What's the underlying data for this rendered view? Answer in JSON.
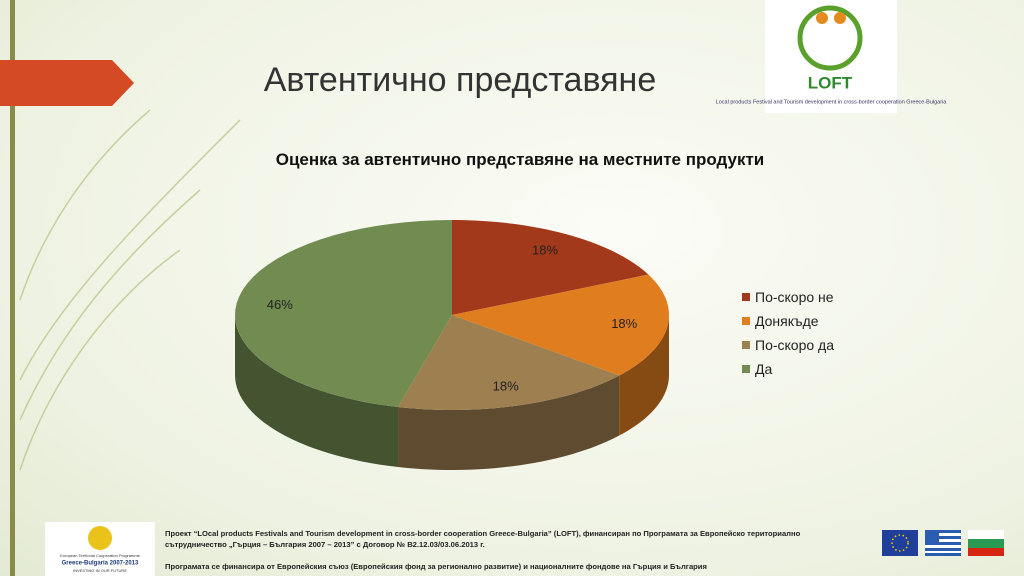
{
  "slide_title": "Автентично представяне",
  "logo": {
    "name": "LOFT",
    "caption": "Local products Festival and Tourism development in cross-border cooperation Greece-Bulgaria"
  },
  "programme_logo": {
    "line1": "European Territorial Cooperation Programme",
    "line2": "Greece-Bulgaria 2007-2013",
    "line3": "INVESTING IN OUR FUTURE"
  },
  "footer": {
    "line1": "Проект “LOcal products Festivals and Tourism development in cross-border cooperation Greece-Bulgaria” (LOFT), финансиран по Програмата за Европейско териториално сътрудничество „Гърция – България 2007 – 2013” с Договор № B2.12.03/03.06.2013 г.",
    "line2": "Програмата се финансира от Европейския съюз (Европейския фонд за регионално развитие) и националните фондове на Гърция и България"
  },
  "chart_data": {
    "type": "pie3d",
    "title": "Оценка за автентично представяне на местните продукти",
    "categories": [
      "По-скоро не",
      "Донякъде",
      "По-скоро да",
      "Да"
    ],
    "values": [
      18,
      18,
      18,
      46
    ],
    "value_labels": [
      "18%",
      "18%",
      "18%",
      "46%"
    ],
    "colors": [
      "#a3391b",
      "#e07d1f",
      "#9e7f50",
      "#718b50"
    ],
    "legend": "right"
  }
}
